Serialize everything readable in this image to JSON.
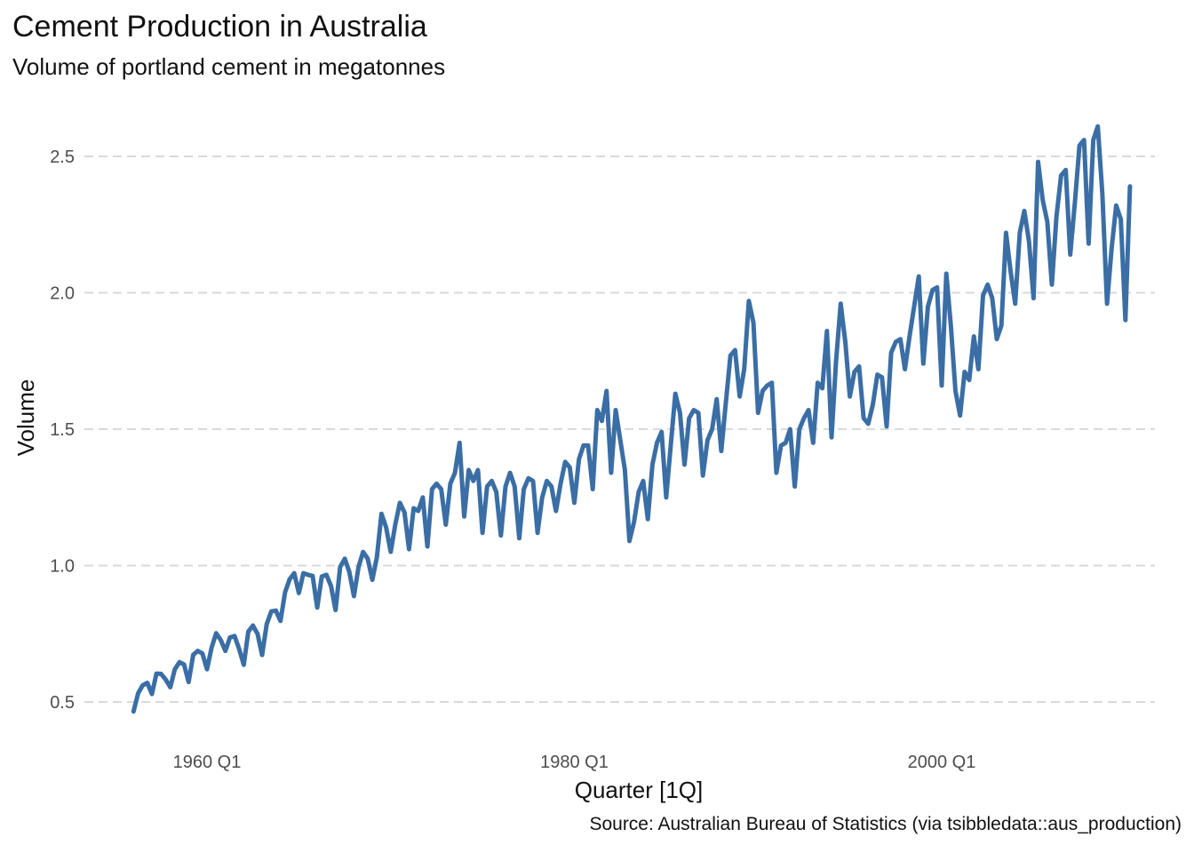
{
  "chart_data": {
    "type": "line",
    "title": "Cement Production in Australia",
    "subtitle": "Volume of portland cement in megatonnes",
    "xlabel": "Quarter [1Q]",
    "ylabel": "Volume",
    "caption": "Source: Australian Bureau of Statistics (via tsibbledata::aus_production)",
    "x_ticks": [
      "1960 Q1",
      "1980 Q1",
      "2000 Q1"
    ],
    "y_ticks": [
      "0.5",
      "1.0",
      "1.5",
      "2.0",
      "2.5"
    ],
    "ylim": [
      0.45,
      2.65
    ],
    "grid": "horizontal dashed",
    "color": "#3a6ea5",
    "series": [
      {
        "x_start": "1956 Q1",
        "frequency": "quarterly",
        "values": [
          0.465,
          0.532,
          0.561,
          0.57,
          0.529,
          0.604,
          0.603,
          0.582,
          0.554,
          0.62,
          0.646,
          0.637,
          0.573,
          0.673,
          0.687,
          0.678,
          0.62,
          0.699,
          0.752,
          0.727,
          0.687,
          0.736,
          0.742,
          0.694,
          0.636,
          0.758,
          0.78,
          0.75,
          0.672,
          0.785,
          0.832,
          0.835,
          0.797,
          0.902,
          0.95,
          0.972,
          0.899,
          0.972,
          0.966,
          0.962,
          0.846,
          0.96,
          0.966,
          0.925,
          0.837,
          0.995,
          1.025,
          0.977,
          0.888,
          0.995,
          1.05,
          1.025,
          0.948,
          1.03,
          1.19,
          1.14,
          1.05,
          1.15,
          1.23,
          1.195,
          1.06,
          1.21,
          1.2,
          1.25,
          1.07,
          1.28,
          1.3,
          1.28,
          1.15,
          1.3,
          1.34,
          1.45,
          1.18,
          1.35,
          1.31,
          1.35,
          1.12,
          1.29,
          1.31,
          1.27,
          1.11,
          1.29,
          1.34,
          1.29,
          1.1,
          1.28,
          1.32,
          1.31,
          1.12,
          1.25,
          1.31,
          1.29,
          1.2,
          1.3,
          1.38,
          1.36,
          1.23,
          1.39,
          1.44,
          1.44,
          1.28,
          1.57,
          1.53,
          1.64,
          1.34,
          1.57,
          1.46,
          1.35,
          1.09,
          1.16,
          1.27,
          1.31,
          1.17,
          1.37,
          1.45,
          1.49,
          1.25,
          1.44,
          1.63,
          1.56,
          1.37,
          1.54,
          1.57,
          1.56,
          1.33,
          1.46,
          1.5,
          1.61,
          1.42,
          1.6,
          1.77,
          1.79,
          1.62,
          1.72,
          1.97,
          1.89,
          1.56,
          1.64,
          1.66,
          1.67,
          1.34,
          1.44,
          1.45,
          1.5,
          1.29,
          1.5,
          1.54,
          1.57,
          1.45,
          1.67,
          1.65,
          1.86,
          1.47,
          1.75,
          1.96,
          1.82,
          1.62,
          1.71,
          1.73,
          1.54,
          1.52,
          1.59,
          1.7,
          1.69,
          1.51,
          1.78,
          1.82,
          1.83,
          1.72,
          1.84,
          1.95,
          2.06,
          1.74,
          1.95,
          2.01,
          2.02,
          1.66,
          2.07,
          1.88,
          1.64,
          1.55,
          1.71,
          1.68,
          1.84,
          1.72,
          1.99,
          2.03,
          1.98,
          1.83,
          1.88,
          2.22,
          2.08,
          1.96,
          2.22,
          2.3,
          2.19,
          1.98,
          2.48,
          2.34,
          2.26,
          2.03,
          2.28,
          2.43,
          2.45,
          2.14,
          2.33,
          2.54,
          2.56,
          2.18,
          2.56,
          2.61,
          2.36,
          1.96,
          2.16,
          2.32,
          2.27,
          1.9,
          2.39
        ]
      }
    ]
  }
}
